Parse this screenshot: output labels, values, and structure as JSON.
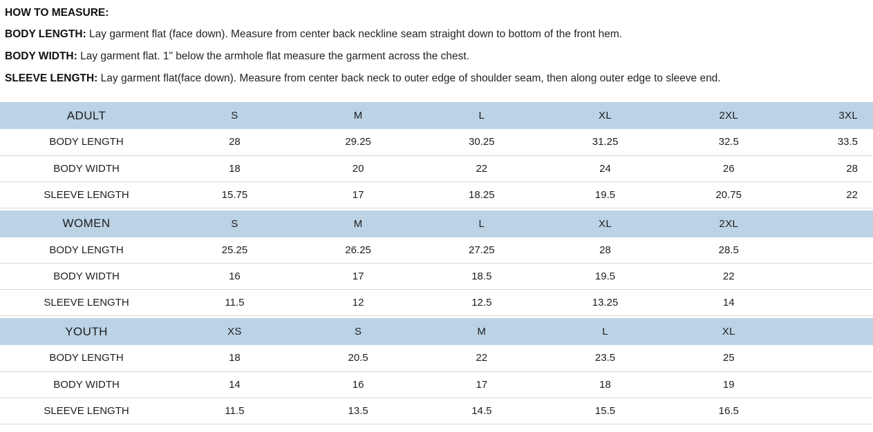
{
  "colors": {
    "header_bg": "#bcd3e6",
    "row_border": "#d7d7d7",
    "text": "#1d1d1d"
  },
  "instructions": {
    "title": "HOW TO MEASURE:",
    "items": [
      {
        "label": "BODY LENGTH:",
        "text": "Lay garment flat (face down). Measure from center back neckline seam straight down to bottom of the front hem."
      },
      {
        "label": "BODY WIDTH:",
        "text": "Lay garment flat. 1\" below the armhole flat measure the garment across the chest."
      },
      {
        "label": "SLEEVE LENGTH:",
        "text": "Lay garment flat(face down). Measure from center back neck to outer edge of shoulder seam, then along outer edge to sleeve end."
      }
    ]
  },
  "tables": [
    {
      "group": "ADULT",
      "sizes": [
        "S",
        "M",
        "L",
        "XL",
        "2XL",
        "3XL"
      ],
      "rows": [
        {
          "label": "BODY LENGTH",
          "values": [
            "28",
            "29.25",
            "30.25",
            "31.25",
            "32.5",
            "33.5"
          ]
        },
        {
          "label": "BODY WIDTH",
          "values": [
            "18",
            "20",
            "22",
            "24",
            "26",
            "28"
          ]
        },
        {
          "label": "SLEEVE LENGTH",
          "values": [
            "15.75",
            "17",
            "18.25",
            "19.5",
            "20.75",
            "22"
          ]
        }
      ]
    },
    {
      "group": "WOMEN",
      "sizes": [
        "S",
        "M",
        "L",
        "XL",
        "2XL",
        ""
      ],
      "rows": [
        {
          "label": "BODY LENGTH",
          "values": [
            "25.25",
            "26.25",
            "27.25",
            "28",
            "28.5",
            ""
          ]
        },
        {
          "label": "BODY WIDTH",
          "values": [
            "16",
            "17",
            "18.5",
            "19.5",
            "22",
            ""
          ]
        },
        {
          "label": "SLEEVE LENGTH",
          "values": [
            "11.5",
            "12",
            "12.5",
            "13.25",
            "14",
            ""
          ]
        }
      ]
    },
    {
      "group": "YOUTH",
      "sizes": [
        "XS",
        "S",
        "M",
        "L",
        "XL",
        ""
      ],
      "rows": [
        {
          "label": "BODY LENGTH",
          "values": [
            "18",
            "20.5",
            "22",
            "23.5",
            "25",
            ""
          ]
        },
        {
          "label": "BODY WIDTH",
          "values": [
            "14",
            "16",
            "17",
            "18",
            "19",
            ""
          ]
        },
        {
          "label": "SLEEVE LENGTH",
          "values": [
            "11.5",
            "13.5",
            "14.5",
            "15.5",
            "16.5",
            ""
          ]
        }
      ]
    }
  ]
}
